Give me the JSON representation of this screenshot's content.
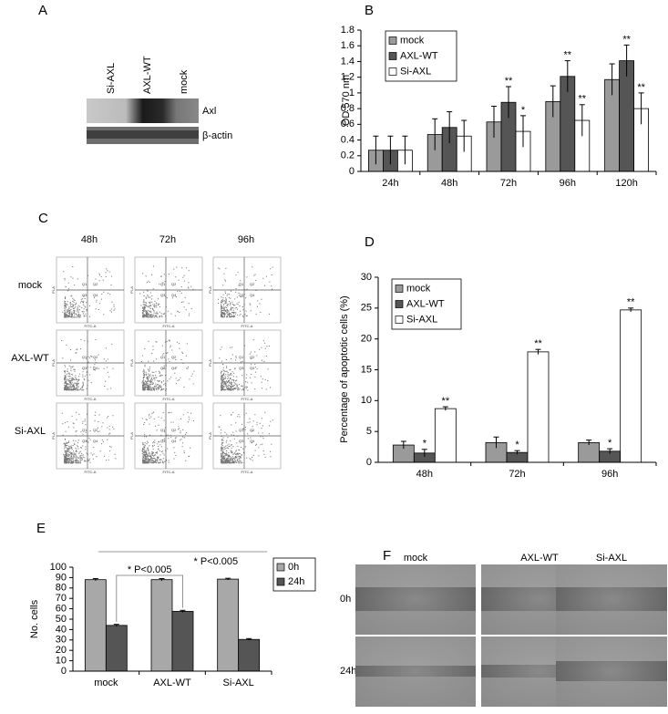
{
  "chart_data": [
    {
      "type": "bar",
      "panel_label": "B",
      "y_label": "OD 570 nm",
      "categories": [
        "24h",
        "48h",
        "72h",
        "96h",
        "120h"
      ],
      "series": [
        {
          "name": "mock",
          "color": "#9a9a9a",
          "values": [
            0.27,
            0.47,
            0.63,
            0.89,
            1.17
          ],
          "errors": [
            0.18,
            0.2,
            0.2,
            0.2,
            0.2
          ],
          "annotations": [
            null,
            null,
            null,
            null,
            null
          ]
        },
        {
          "name": "AXL-WT",
          "color": "#555555",
          "values": [
            0.27,
            0.56,
            0.88,
            1.21,
            1.41
          ],
          "errors": [
            0.18,
            0.2,
            0.2,
            0.2,
            0.2
          ],
          "annotations": [
            null,
            null,
            "**",
            "**",
            "**"
          ]
        },
        {
          "name": "Si-AXL",
          "color": "#ffffff",
          "values": [
            0.27,
            0.45,
            0.51,
            0.65,
            0.8
          ],
          "errors": [
            0.18,
            0.2,
            0.2,
            0.2,
            0.2
          ],
          "annotations": [
            null,
            null,
            "*",
            "**",
            "**"
          ]
        }
      ],
      "ylim": [
        0,
        1.8
      ],
      "yticks": [
        0,
        0.2,
        0.4,
        0.6,
        0.8,
        1,
        1.2,
        1.4,
        1.6,
        1.8
      ],
      "legend": "upper left",
      "grid": false
    },
    {
      "type": "bar",
      "panel_label": "D",
      "y_label": "Percentage of apoptotic cells (%)",
      "categories": [
        "48h",
        "72h",
        "96h"
      ],
      "series": [
        {
          "name": "mock",
          "color": "#9a9a9a",
          "values": [
            2.8,
            3.2,
            3.2
          ],
          "errors": [
            0.6,
            0.9,
            0.4
          ],
          "annotations": [
            null,
            null,
            null
          ]
        },
        {
          "name": "AXL-WT",
          "color": "#555555",
          "values": [
            1.5,
            1.6,
            1.8
          ],
          "errors": [
            0.6,
            0.3,
            0.4
          ],
          "annotations": [
            "*",
            "*",
            "*"
          ]
        },
        {
          "name": "Si-AXL",
          "color": "#ffffff",
          "values": [
            8.7,
            17.9,
            24.7
          ],
          "errors": [
            0.3,
            0.4,
            0.3
          ],
          "annotations": [
            "**",
            "**",
            "**"
          ]
        }
      ],
      "ylim": [
        0,
        30
      ],
      "yticks": [
        0,
        5,
        10,
        15,
        20,
        25,
        30
      ],
      "legend": "upper left",
      "grid": false
    },
    {
      "type": "bar",
      "panel_label": "E",
      "y_label": "No. cells",
      "categories": [
        "mock",
        "AXL-WT",
        "Si-AXL"
      ],
      "series": [
        {
          "name": "0h",
          "color": "#a8a8a8",
          "values": [
            88,
            88,
            88.5
          ],
          "errors": [
            1,
            1,
            0.8
          ],
          "annotations": [
            null,
            null,
            null
          ]
        },
        {
          "name": "24h",
          "color": "#555555",
          "values": [
            44,
            57.5,
            30.5
          ],
          "errors": [
            1,
            1,
            0.8
          ],
          "annotations": [
            null,
            null,
            null
          ]
        }
      ],
      "comparisons": [
        "* P<0.005",
        "* P<0.005"
      ],
      "ylim": [
        0,
        100
      ],
      "yticks": [
        0,
        10,
        20,
        30,
        40,
        50,
        60,
        70,
        80,
        90,
        100
      ],
      "legend": "right",
      "grid": false
    }
  ],
  "panels": {
    "A": {
      "letter": "A",
      "lanes": [
        "Si-AXL",
        "AXL-WT",
        "mock"
      ],
      "bands": [
        "Axl",
        "β-actin"
      ]
    },
    "C": {
      "letter": "C",
      "columns": [
        "48h",
        "72h",
        "96h"
      ],
      "rows": [
        "mock",
        "AXL-WT",
        "Si-AXL"
      ],
      "quadrants": [
        "Q1",
        "Q2",
        "Q3",
        "Q4"
      ],
      "x_axis_label": "FITC-A",
      "y_axis_label": "PI-A"
    },
    "F": {
      "letter": "F",
      "columns": [
        "mock",
        "AXL-WT",
        "Si-AXL"
      ],
      "rows": [
        "0h",
        "24h"
      ]
    }
  }
}
